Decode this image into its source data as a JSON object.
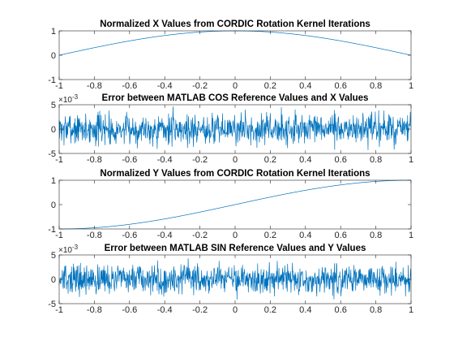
{
  "figure": {
    "background": "#ffffff",
    "axes_color": "#262626",
    "line_color": "#0072bd"
  },
  "chart_data": [
    {
      "type": "line",
      "title": "Normalized X Values from CORDIC Rotation Kernel Iterations",
      "xlim": [
        -1,
        1
      ],
      "ylim": [
        -1,
        1
      ],
      "xticks": [
        -1,
        -0.8,
        -0.6,
        -0.4,
        -0.2,
        0,
        0.2,
        0.4,
        0.6,
        0.8,
        1
      ],
      "xtick_labels": [
        "-1",
        "-0.8",
        "-0.6",
        "-0.4",
        "-0.2",
        "0",
        "0.2",
        "0.4",
        "0.6",
        "0.8",
        "1"
      ],
      "yticks": [
        -1,
        0,
        1
      ],
      "ytick_labels": [
        "-1",
        "0",
        "1"
      ],
      "exponent_label": "",
      "function": "cos",
      "samples": 1024,
      "x_scale": 1.5707963,
      "series": [
        {
          "values_desc": ""
        }
      ]
    },
    {
      "type": "line",
      "title": "Error between MATLAB COS Reference Values and X Values",
      "xlim": [
        -1,
        1
      ],
      "ylim": [
        -5,
        5
      ],
      "xticks": [
        -1,
        -0.8,
        -0.6,
        -0.4,
        -0.2,
        0,
        0.2,
        0.4,
        0.6,
        0.8,
        1
      ],
      "xtick_labels": [
        "-1",
        "-0.8",
        "-0.6",
        "-0.4",
        "-0.2",
        "0",
        "0.2",
        "0.4",
        "0.6",
        "0.8",
        "1"
      ],
      "yticks": [
        -5,
        0,
        5
      ],
      "ytick_labels": [
        "-5",
        "0",
        "5"
      ],
      "exponent_label": "×10",
      "exponent_power": "-3",
      "function": "noise",
      "samples": 1024,
      "amplitude": 1.6,
      "seed": 7,
      "series": [
        {
          "values_desc": ""
        }
      ]
    },
    {
      "type": "line",
      "title": "Normalized Y Values from CORDIC Rotation Kernel Iterations",
      "xlim": [
        -1,
        1
      ],
      "ylim": [
        -1,
        1
      ],
      "xticks": [
        -1,
        -0.8,
        -0.6,
        -0.4,
        -0.2,
        0,
        0.2,
        0.4,
        0.6,
        0.8,
        1
      ],
      "xtick_labels": [
        "-1",
        "-0.8",
        "-0.6",
        "-0.4",
        "-0.2",
        "0",
        "0.2",
        "0.4",
        "0.6",
        "0.8",
        "1"
      ],
      "yticks": [
        -1,
        0,
        1
      ],
      "ytick_labels": [
        "-1",
        "0",
        "1"
      ],
      "exponent_label": "",
      "function": "sin",
      "samples": 1024,
      "x_scale": 1.5707963,
      "series": [
        {
          "values_desc": ""
        }
      ]
    },
    {
      "type": "line",
      "title": "Error between MATLAB SIN Reference Values and Y Values",
      "xlim": [
        -1,
        1
      ],
      "ylim": [
        -5,
        5
      ],
      "xticks": [
        -1,
        -0.8,
        -0.6,
        -0.4,
        -0.2,
        0,
        0.2,
        0.4,
        0.6,
        0.8,
        1
      ],
      "xtick_labels": [
        "-1",
        "-0.8",
        "-0.6",
        "-0.4",
        "-0.2",
        "0",
        "0.2",
        "0.4",
        "0.6",
        "0.8",
        "1"
      ],
      "yticks": [
        -5,
        0,
        5
      ],
      "ytick_labels": [
        "-5",
        "0",
        "5"
      ],
      "exponent_label": "×10",
      "exponent_power": "-3",
      "function": "noise",
      "samples": 1024,
      "amplitude": 1.5,
      "seed": 13,
      "series": [
        {
          "values_desc": ""
        }
      ]
    }
  ]
}
